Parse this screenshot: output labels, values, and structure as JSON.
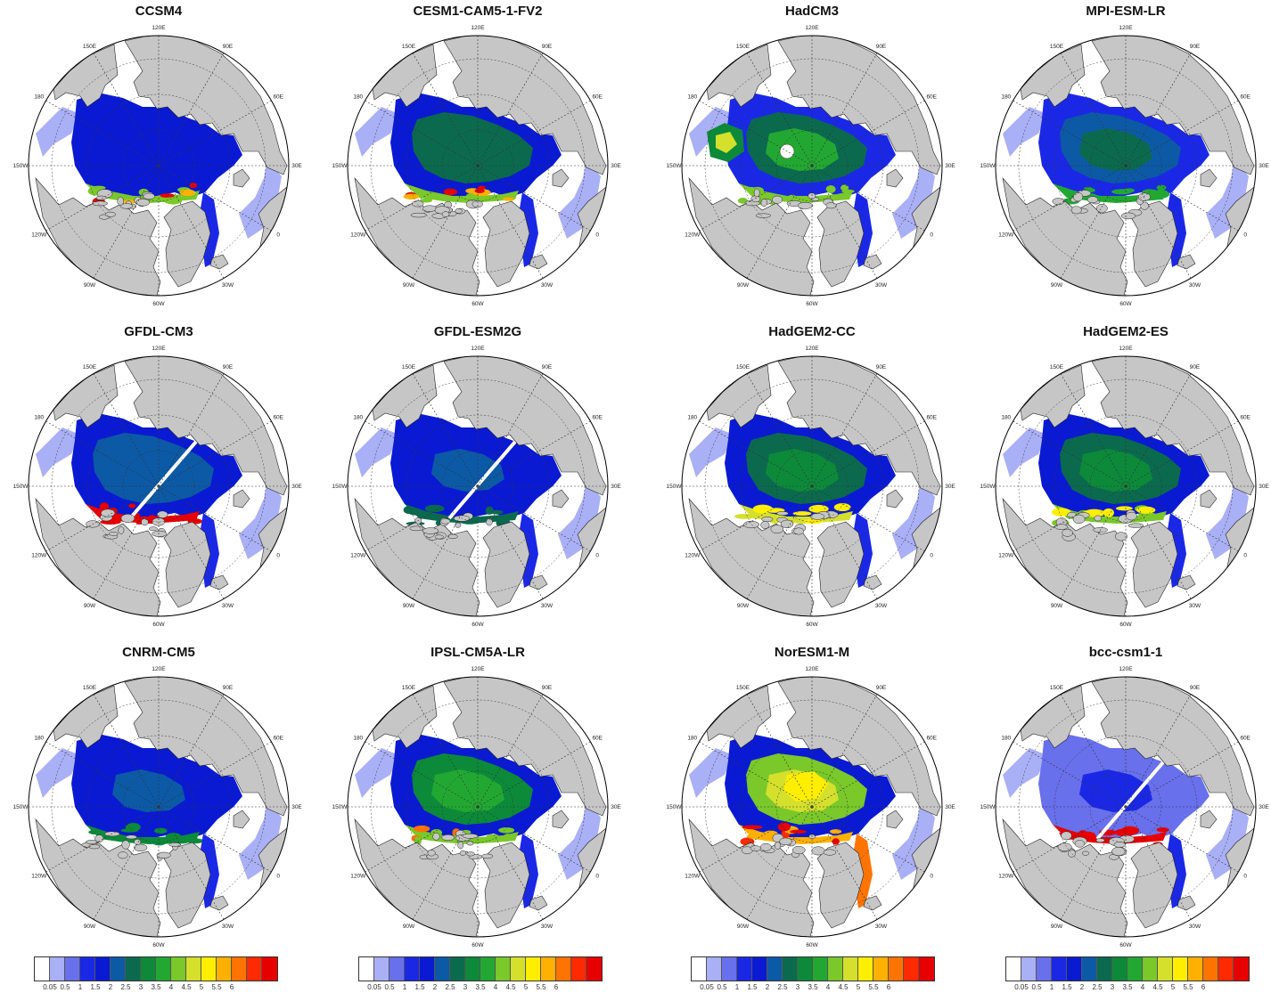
{
  "figure": {
    "panels": [
      {
        "title": "CCSM4",
        "style": "ccsm"
      },
      {
        "title": "CESM1-CAM5-1-FV2",
        "style": "cesm"
      },
      {
        "title": "HadCM3",
        "style": "hadcm3"
      },
      {
        "title": "MPI-ESM-LR",
        "style": "mpi"
      },
      {
        "title": "GFDL-CM3",
        "style": "gfdlcm3"
      },
      {
        "title": "GFDL-ESM2G",
        "style": "gfdlesm"
      },
      {
        "title": "HadGEM2-CC",
        "style": "hadgemcc"
      },
      {
        "title": "HadGEM2-ES",
        "style": "hadgemes"
      },
      {
        "title": "CNRM-CM5",
        "style": "cnrm"
      },
      {
        "title": "IPSL-CM5A-LR",
        "style": "ipsl"
      },
      {
        "title": "NorESM1-M",
        "style": "noresm"
      },
      {
        "title": "bcc-csm1-1",
        "style": "bcc"
      }
    ],
    "longitude_labels": [
      "120E",
      "90E",
      "60E",
      "30E",
      "0",
      "30W",
      "60W",
      "90W",
      "120W",
      "150W",
      "180",
      "150E"
    ],
    "colorbar": {
      "ticks": [
        "0.05",
        "0.5",
        "1",
        "1.5",
        "2",
        "2.5",
        "3",
        "3.5",
        "4",
        "4.5",
        "5",
        "5.5",
        "6"
      ],
      "colors": [
        "#ffffff",
        "#aab0f5",
        "#6870ec",
        "#1a28e6",
        "#0a1ad2",
        "#0c5aa6",
        "#0b6a4e",
        "#0c8a3a",
        "#22a832",
        "#7ac82a",
        "#d4e02c",
        "#ffee00",
        "#ffb000",
        "#ff7400",
        "#ff2a00",
        "#e60000"
      ]
    },
    "colors": {
      "land": "#c6c6c6",
      "ocean_open": "#ffffff",
      "outline": "#000000"
    }
  }
}
